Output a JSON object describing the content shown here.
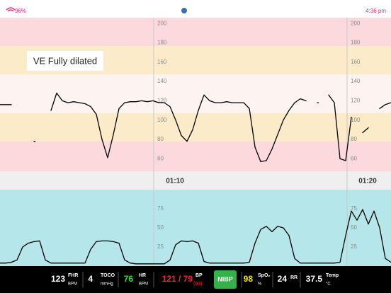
{
  "status_bar": {
    "battery": "96%",
    "time": "4:36 pm"
  },
  "fhr_chart": {
    "type": "line",
    "ylim": [
      47,
      206
    ],
    "yticks": [
      60,
      80,
      100,
      120,
      140,
      160,
      180,
      200
    ],
    "time_labels": [
      "01:10",
      "01:20"
    ],
    "annotation": "VE Fully dilated",
    "color": "#000000",
    "values": [
      116,
      116,
      116,
      null,
      null,
      null,
      78,
      null,
      null,
      110,
      128,
      120,
      118,
      119,
      118,
      117,
      114,
      106,
      80,
      61,
      85,
      112,
      118,
      119,
      119,
      120,
      119,
      120,
      118,
      118,
      114,
      100,
      84,
      78,
      90,
      110,
      126,
      120,
      118,
      118,
      119,
      118,
      118,
      118,
      112,
      72,
      57,
      58,
      70,
      85,
      100,
      110,
      118,
      122,
      120,
      null,
      118,
      null,
      126,
      118,
      60,
      58,
      103,
      null,
      87,
      92,
      null,
      112,
      116,
      118
    ]
  },
  "toco_chart": {
    "type": "line",
    "ylim": [
      0,
      100
    ],
    "yticks": [
      25,
      50,
      75
    ],
    "color": "#000000",
    "values": [
      4,
      4,
      5,
      8,
      25,
      30,
      32,
      33,
      8,
      4,
      4,
      4,
      4,
      4,
      4,
      4,
      22,
      32,
      33,
      33,
      32,
      30,
      8,
      4,
      3,
      3,
      3,
      3,
      3,
      3,
      8,
      28,
      33,
      32,
      33,
      30,
      6,
      4,
      4,
      4,
      4,
      4,
      4,
      4,
      5,
      30,
      48,
      52,
      45,
      52,
      50,
      40,
      10,
      4,
      4,
      4,
      4,
      4,
      4,
      4,
      5,
      40,
      72,
      60,
      74,
      55,
      72,
      50,
      10,
      5
    ]
  },
  "vitals": {
    "fhr": {
      "value": 123,
      "label": "FHR",
      "unit": "BPM"
    },
    "toco": {
      "value": 4,
      "label": "TOCO",
      "unit": "mmHg"
    },
    "hr": {
      "value": 76,
      "label": "HR",
      "unit": "BPM"
    },
    "bp": {
      "value": "121 / 79",
      "label": "BP",
      "mean": "(93)"
    },
    "nibp_button": "NIBP",
    "spo2": {
      "value": 98,
      "label": "SpO₂",
      "unit": "%"
    },
    "rr": {
      "value": 24,
      "label": "RR"
    },
    "temp": {
      "value": 37.5,
      "label": "Temp",
      "unit": "°C"
    }
  }
}
